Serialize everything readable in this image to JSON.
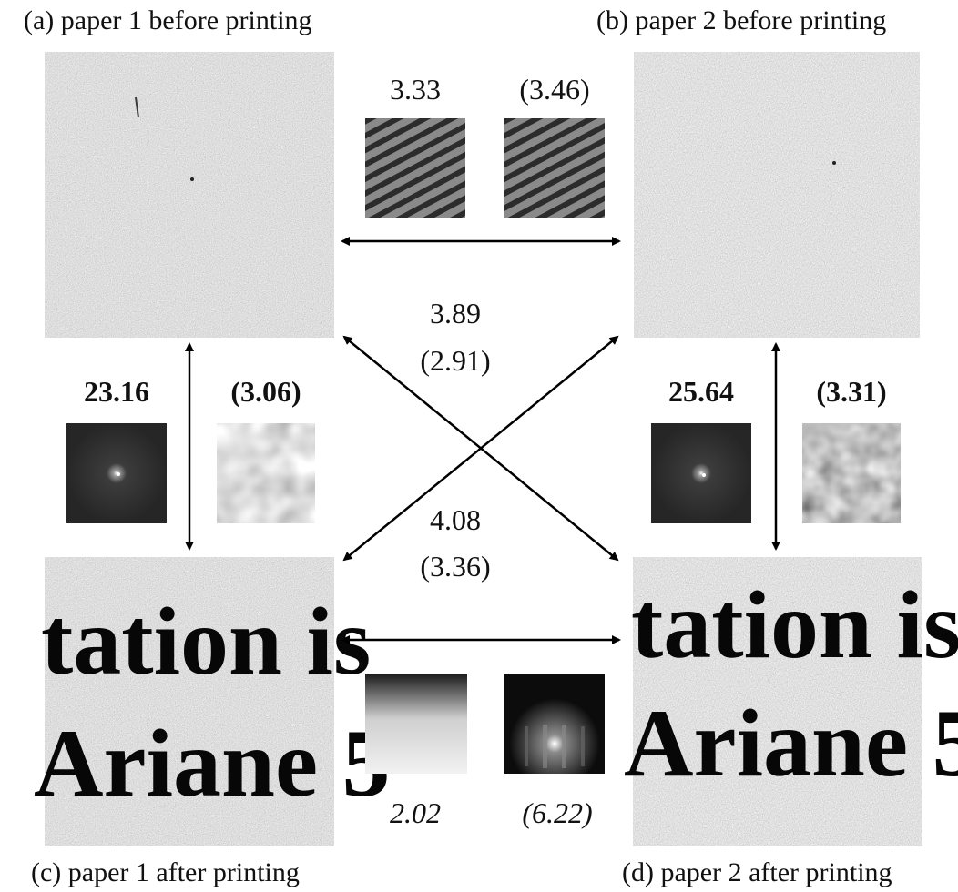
{
  "captions": {
    "a": "(a) paper 1 before printing",
    "b": "(b) paper 2 before printing",
    "c": "(c) paper 1 after printing",
    "d": "(d) paper 2 after printing"
  },
  "printed_text": {
    "line1": "tation is",
    "line2": "Ariane 5"
  },
  "scores": {
    "top_left": "3.33",
    "top_right": "(3.46)",
    "diag_1": "3.89",
    "diag_1_alt": "(2.91)",
    "diag_2": "4.08",
    "diag_2_alt": "(3.36)",
    "left_left": "23.16",
    "left_right": "(3.06)",
    "right_left": "25.64",
    "right_right": "(3.31)",
    "bottom_left": "2.02",
    "bottom_right": "(6.22)"
  },
  "colors": {
    "paper_gray": "#b8b8b8",
    "ink": "#070707",
    "arrow": "#000000"
  }
}
